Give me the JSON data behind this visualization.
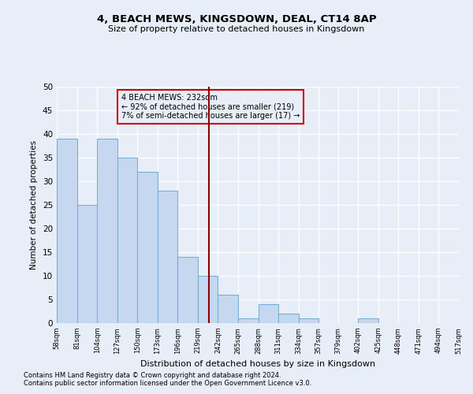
{
  "title": "4, BEACH MEWS, KINGSDOWN, DEAL, CT14 8AP",
  "subtitle": "Size of property relative to detached houses in Kingsdown",
  "xlabel": "Distribution of detached houses by size in Kingsdown",
  "ylabel": "Number of detached properties",
  "bin_edges": [
    58,
    81,
    104,
    127,
    150,
    173,
    196,
    219,
    242,
    265,
    288,
    311,
    334,
    357,
    379,
    402,
    425,
    448,
    471,
    494,
    517
  ],
  "bar_heights": [
    39,
    25,
    39,
    35,
    32,
    28,
    14,
    10,
    6,
    1,
    4,
    2,
    1,
    0,
    0,
    1,
    0,
    0,
    0,
    0
  ],
  "tick_labels": [
    "58sqm",
    "81sqm",
    "104sqm",
    "127sqm",
    "150sqm",
    "173sqm",
    "196sqm",
    "219sqm",
    "242sqm",
    "265sqm",
    "288sqm",
    "311sqm",
    "334sqm",
    "357sqm",
    "379sqm",
    "402sqm",
    "425sqm",
    "448sqm",
    "471sqm",
    "494sqm",
    "517sqm"
  ],
  "bar_color": "#c5d8f0",
  "bar_edge_color": "#7aaed4",
  "vline_x": 232,
  "vline_color": "#8b0000",
  "annotation_text": "4 BEACH MEWS: 232sqm\n← 92% of detached houses are smaller (219)\n7% of semi-detached houses are larger (17) →",
  "annotation_box_color": "#cc0000",
  "ylim": [
    0,
    50
  ],
  "yticks": [
    0,
    5,
    10,
    15,
    20,
    25,
    30,
    35,
    40,
    45,
    50
  ],
  "footnote1": "Contains HM Land Registry data © Crown copyright and database right 2024.",
  "footnote2": "Contains public sector information licensed under the Open Government Licence v3.0.",
  "bg_color": "#e8eef8",
  "grid_color": "#ffffff"
}
